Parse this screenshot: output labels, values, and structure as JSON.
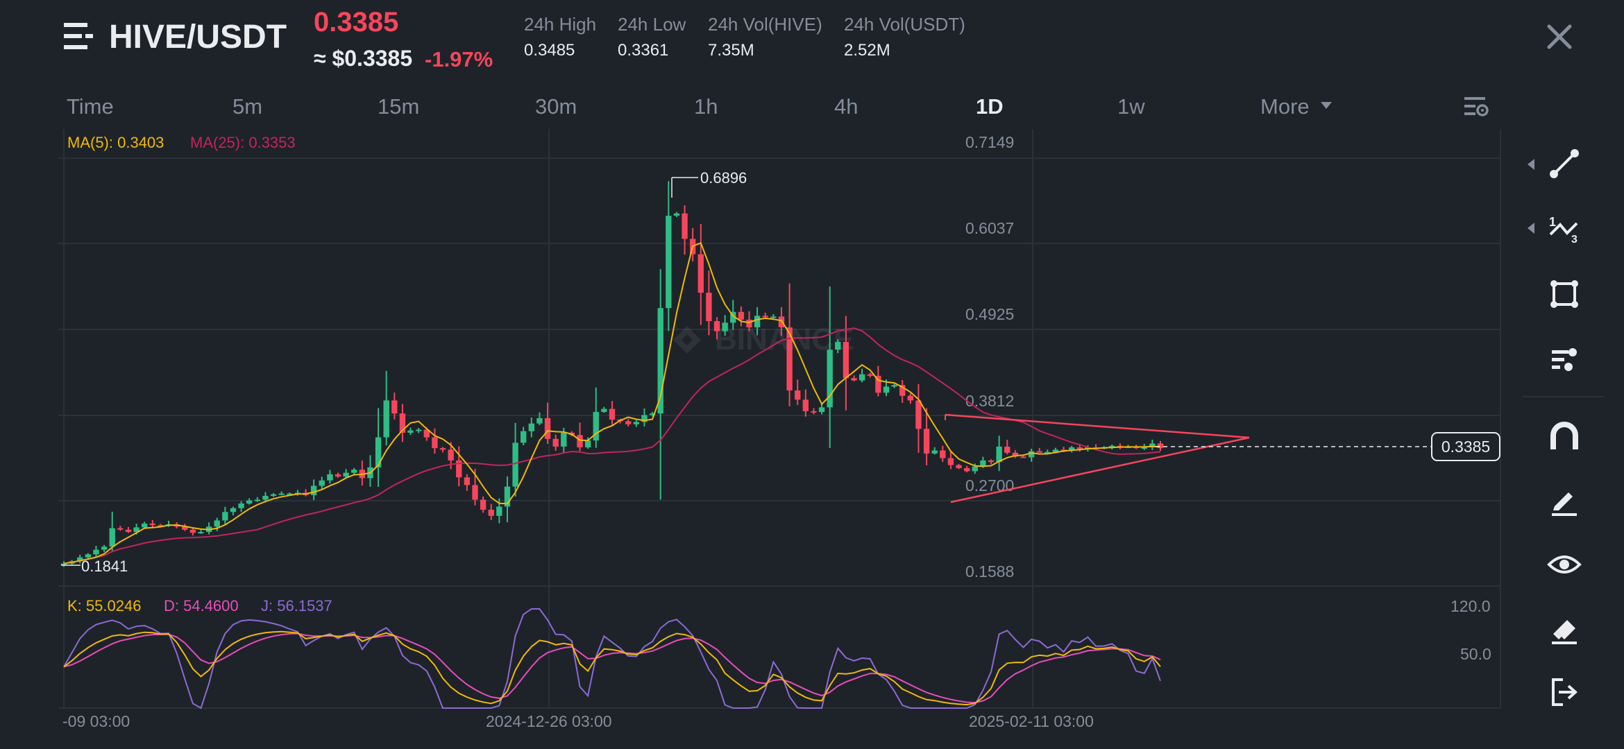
{
  "header": {
    "pair": "HIVE/USDT",
    "price": "0.3385",
    "price_usd": "≈ $0.3385",
    "change": "-1.97%",
    "stats": [
      {
        "label": "24h High",
        "value": "0.3485"
      },
      {
        "label": "24h Low",
        "value": "0.3361"
      },
      {
        "label": "24h Vol(HIVE)",
        "value": "7.35M"
      },
      {
        "label": "24h Vol(USDT)",
        "value": "2.52M"
      }
    ]
  },
  "timeframes": {
    "items": [
      "Time",
      "5m",
      "15m",
      "30m",
      "1h",
      "4h",
      "1D",
      "1w",
      "More"
    ],
    "active": "1D"
  },
  "legend": {
    "ma5": "MA(5): 0.3403",
    "ma25": "MA(25): 0.3353",
    "k": "K: 55.0246",
    "d": "D: 54.4600",
    "j": "J: 56.1537"
  },
  "colors": {
    "up": "#2ebd85",
    "down": "#f6465d",
    "ma5": "#f0b90b",
    "ma25": "#c2255c",
    "kdj_d": "#e84dbd",
    "kdj_j": "#8c6ad6",
    "background": "#1e2329",
    "grid": "#2b3139"
  },
  "toolbar": [
    "trendline-icon",
    "fibonacci-icon",
    "rectangle-icon",
    "brush-settings-icon",
    "magnet-icon",
    "pen-icon",
    "eye-icon",
    "eraser-icon",
    "exit-icon"
  ],
  "chart_data": [
    {
      "type": "candlestick",
      "title": "HIVE/USDT 1D",
      "price_axis_ticks": [
        "0.7149",
        "0.6037",
        "0.4925",
        "0.3812",
        "0.2700",
        "0.1588"
      ],
      "time_axis_ticks": [
        "-09 03:00",
        "2024-12-26 03:00",
        "2025-02-11 03:00"
      ],
      "current_price_label": "0.3385",
      "high_marker": "0.6896",
      "low_marker": "0.1841",
      "ylim": [
        0.1588,
        0.7149
      ],
      "close_series": [
        0.188,
        0.191,
        0.196,
        0.2,
        0.206,
        0.21,
        0.234,
        0.232,
        0.229,
        0.235,
        0.24,
        0.238,
        0.237,
        0.239,
        0.236,
        0.232,
        0.228,
        0.229,
        0.236,
        0.244,
        0.255,
        0.26,
        0.266,
        0.27,
        0.271,
        0.276,
        0.278,
        0.279,
        0.279,
        0.28,
        0.277,
        0.289,
        0.296,
        0.304,
        0.301,
        0.306,
        0.31,
        0.299,
        0.313,
        0.352,
        0.4,
        0.383,
        0.358,
        0.361,
        0.362,
        0.352,
        0.338,
        0.336,
        0.322,
        0.3,
        0.29,
        0.271,
        0.258,
        0.25,
        0.262,
        0.288,
        0.345,
        0.36,
        0.37,
        0.377,
        0.35,
        0.34,
        0.358,
        0.355,
        0.339,
        0.348,
        0.385,
        0.389,
        0.375,
        0.373,
        0.369,
        0.372,
        0.381,
        0.383,
        0.52,
        0.64,
        0.643,
        0.61,
        0.59,
        0.54,
        0.503,
        0.49,
        0.501,
        0.515,
        0.505,
        0.495,
        0.51,
        0.509,
        0.509,
        0.495,
        0.413,
        0.401,
        0.386,
        0.385,
        0.391,
        0.466,
        0.476,
        0.429,
        0.426,
        0.434,
        0.432,
        0.41,
        0.418,
        0.42,
        0.406,
        0.4,
        0.363,
        0.331,
        0.335,
        0.325,
        0.316,
        0.312,
        0.308,
        0.314,
        0.322,
        0.32,
        0.34,
        0.332,
        0.327,
        0.326,
        0.334,
        0.333,
        0.333,
        0.336,
        0.335,
        0.339,
        0.337,
        0.339,
        0.338,
        0.339,
        0.341,
        0.34,
        0.34,
        0.338,
        0.339,
        0.344,
        0.338
      ],
      "series": [
        {
          "name": "MA(5)",
          "last": 0.3403
        },
        {
          "name": "MA(25)",
          "last": 0.3353
        }
      ]
    },
    {
      "type": "line",
      "title": "KDJ",
      "ylim": [
        0,
        120
      ],
      "ticks": [
        "120.0",
        "50.0"
      ],
      "series": [
        {
          "name": "K",
          "last": 55.0246
        },
        {
          "name": "D",
          "last": 54.46
        },
        {
          "name": "J",
          "last": 56.1537
        }
      ]
    }
  ]
}
